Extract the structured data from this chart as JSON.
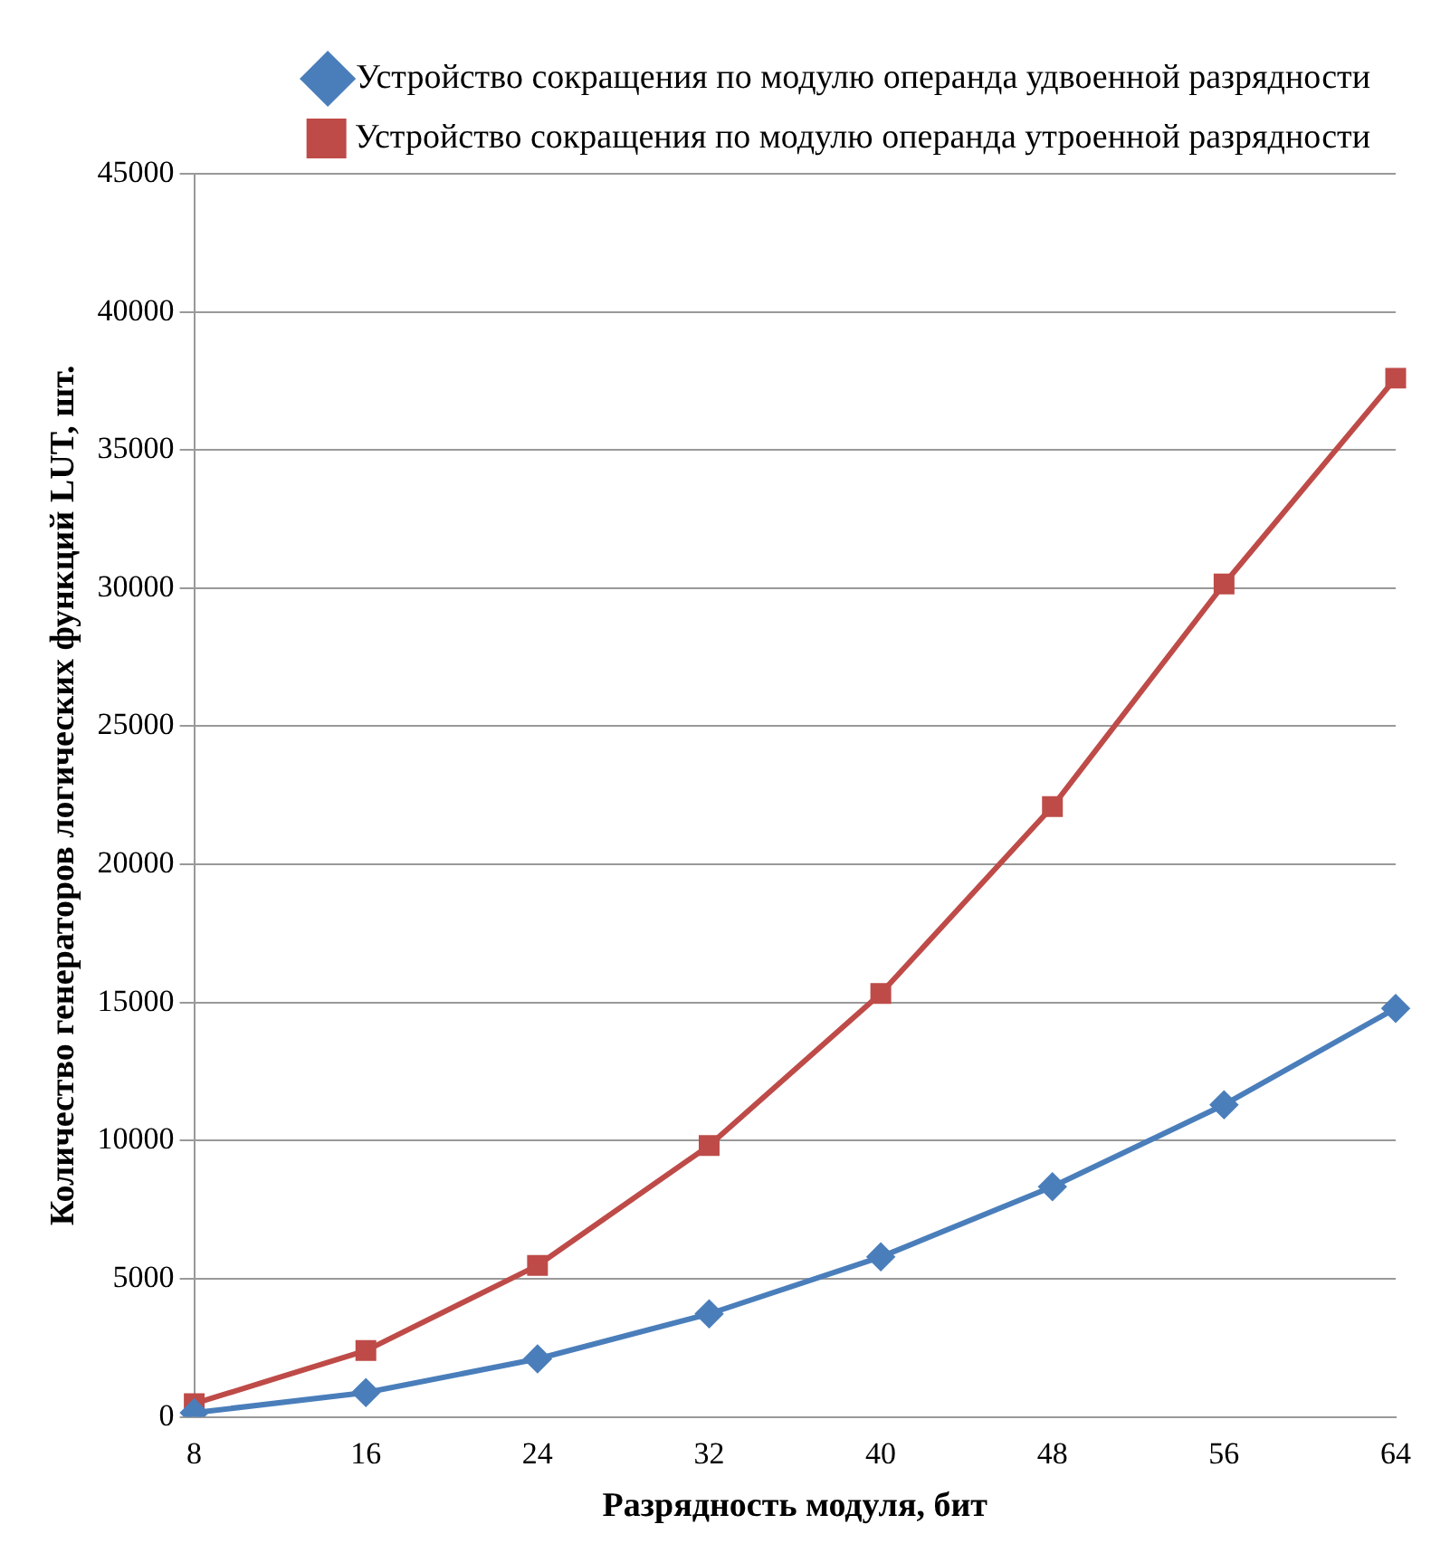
{
  "chart_data": {
    "type": "line",
    "xlabel": "Разрядность модуля, бит",
    "ylabel": "Количество генераторов логических функций LUT, шт.",
    "categories": [
      "8",
      "16",
      "24",
      "32",
      "40",
      "48",
      "56",
      "64"
    ],
    "series": [
      {
        "name": "Устройство сокращения по модулю операнда удвоенной разрядности",
        "color": "#4a7ebb",
        "marker": "diamond",
        "values": [
          150,
          880,
          2100,
          3730,
          5790,
          8330,
          11300,
          14790
        ]
      },
      {
        "name": "Устройство сокращения по модулю операнда утроенной разрядности",
        "color": "#be4b48",
        "marker": "square",
        "values": [
          480,
          2400,
          5480,
          9820,
          15330,
          22090,
          30150,
          37600
        ]
      }
    ],
    "ylim": [
      0,
      45000
    ],
    "yticks": [
      0,
      5000,
      10000,
      15000,
      20000,
      25000,
      30000,
      35000,
      40000,
      45000
    ],
    "grid": "y",
    "legend": "top right",
    "line_style": "solid"
  }
}
